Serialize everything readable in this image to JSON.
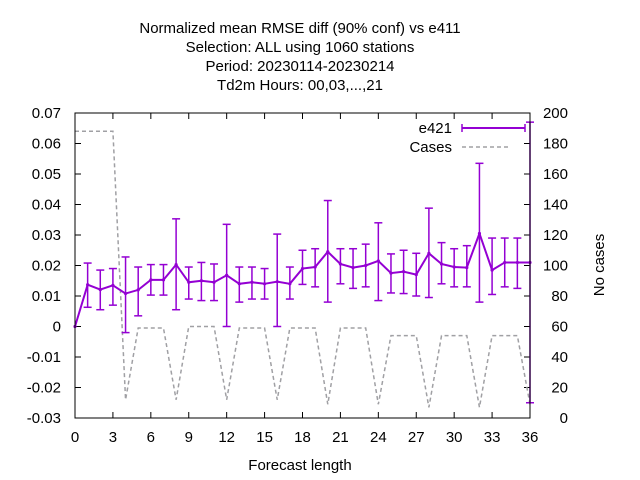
{
  "chart_data": {
    "type": "line",
    "title_lines": [
      "Normalized mean RMSE diff (90% conf) vs e411",
      "Selection: ALL using  1060 stations",
      "Period: 20230114-20230214",
      "Td2m   Hours:  00,03,...,21"
    ],
    "xlabel": "Forecast length",
    "ylabel_right": "No cases",
    "xlim": [
      0,
      36
    ],
    "ylim": [
      -0.03,
      0.07
    ],
    "y2lim": [
      0,
      200
    ],
    "xticks": [
      "0",
      "3",
      "6",
      "9",
      "12",
      "15",
      "18",
      "21",
      "24",
      "27",
      "30",
      "33",
      "36"
    ],
    "yticks": [
      "-0.03",
      "-0.02",
      "-0.01",
      "0",
      "0.01",
      "0.02",
      "0.03",
      "0.04",
      "0.05",
      "0.06",
      "0.07"
    ],
    "y2ticks": [
      "0",
      "20",
      "40",
      "60",
      "80",
      "100",
      "120",
      "140",
      "160",
      "180",
      "200"
    ],
    "legend_position": "top-right",
    "series": [
      {
        "name": "e421",
        "color": "#9400d3",
        "axis": "left",
        "x": [
          0,
          1,
          2,
          3,
          4,
          5,
          6,
          7,
          8,
          9,
          10,
          11,
          12,
          13,
          14,
          15,
          16,
          17,
          18,
          19,
          20,
          21,
          22,
          23,
          24,
          25,
          26,
          27,
          28,
          29,
          30,
          31,
          32,
          33,
          34,
          35,
          36
        ],
        "y": [
          0.0,
          0.0137,
          0.0121,
          0.0135,
          0.0108,
          0.012,
          0.0153,
          0.0153,
          0.0203,
          0.0145,
          0.015,
          0.0145,
          0.0168,
          0.014,
          0.0145,
          0.014,
          0.0147,
          0.014,
          0.019,
          0.0195,
          0.0245,
          0.0205,
          0.0193,
          0.02,
          0.0215,
          0.0175,
          0.018,
          0.017,
          0.024,
          0.0205,
          0.0195,
          0.0193,
          0.0305,
          0.0185,
          0.021,
          0.021,
          0.021
        ],
        "y_low": [
          0.0,
          0.0063,
          0.0055,
          0.007,
          -0.002,
          0.0035,
          0.0103,
          0.0103,
          0.0055,
          0.009,
          0.0085,
          0.0085,
          0.0,
          0.008,
          0.009,
          0.009,
          0.0,
          0.009,
          0.0138,
          0.013,
          0.008,
          0.014,
          0.0125,
          0.013,
          0.0085,
          0.011,
          0.0108,
          0.01,
          0.0095,
          0.014,
          0.013,
          0.013,
          0.008,
          0.0105,
          0.013,
          0.0125,
          -0.025
        ],
        "y_high": [
          0.0,
          0.0208,
          0.0185,
          0.019,
          0.0228,
          0.0195,
          0.0203,
          0.0203,
          0.0353,
          0.0195,
          0.021,
          0.0205,
          0.0335,
          0.0195,
          0.0195,
          0.019,
          0.0303,
          0.0195,
          0.025,
          0.0255,
          0.0413,
          0.0255,
          0.0255,
          0.027,
          0.034,
          0.0238,
          0.025,
          0.024,
          0.0388,
          0.0275,
          0.0255,
          0.0265,
          0.0535,
          0.029,
          0.029,
          0.029,
          0.067
        ]
      },
      {
        "name": "Cases",
        "color": "#a0a0a4",
        "axis": "right",
        "x": [
          0,
          1,
          2,
          3,
          4,
          5,
          6,
          7,
          8,
          9,
          10,
          11,
          12,
          13,
          14,
          15,
          16,
          17,
          18,
          19,
          20,
          21,
          22,
          23,
          24,
          25,
          26,
          27,
          28,
          29,
          30,
          31,
          32,
          33,
          34,
          35,
          36
        ],
        "y": [
          188,
          188,
          188,
          188,
          12,
          59,
          59,
          59,
          12,
          60,
          60,
          60,
          12,
          59,
          59,
          59,
          12,
          59,
          59,
          59,
          9,
          59,
          59,
          59,
          9,
          54,
          54,
          54,
          7,
          54,
          54,
          54,
          7,
          54,
          54,
          54,
          9
        ]
      }
    ]
  }
}
